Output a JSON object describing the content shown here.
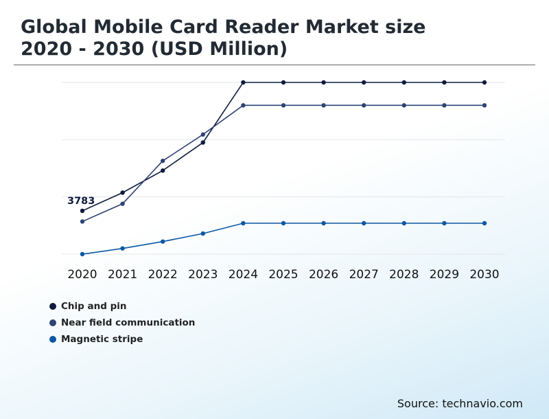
{
  "chart_data": {
    "type": "line",
    "title_line1": "Global Mobile Card Reader Market size",
    "title_line2": "2020 - 2030 (USD Million)",
    "categories": [
      "2020",
      "2021",
      "2022",
      "2023",
      "2024",
      "2025",
      "2026",
      "2027",
      "2028",
      "2029",
      "2030"
    ],
    "ylim": [
      0,
      15000
    ],
    "grid": true,
    "series": [
      {
        "name": "Chip and pin",
        "color": "#0d1b3e",
        "values": [
          3783,
          5370,
          7300,
          9750,
          15000,
          15000,
          15000,
          15000,
          15000,
          15000,
          15000
        ]
      },
      {
        "name": "Near field communication",
        "color": "#2e4474",
        "values": [
          2850,
          4400,
          8150,
          10450,
          13000,
          13000,
          13000,
          13000,
          13000,
          13000,
          13000
        ]
      },
      {
        "name": "Magnetic stripe",
        "color": "#0b57a4",
        "values": [
          0,
          500,
          1100,
          1800,
          2700,
          2700,
          2700,
          2700,
          2700,
          2700,
          2700
        ]
      }
    ],
    "annotation": {
      "series": 0,
      "index": 0,
      "text": "3783"
    },
    "legend_position": "bottom-left"
  },
  "source": "Source: technavio.com"
}
